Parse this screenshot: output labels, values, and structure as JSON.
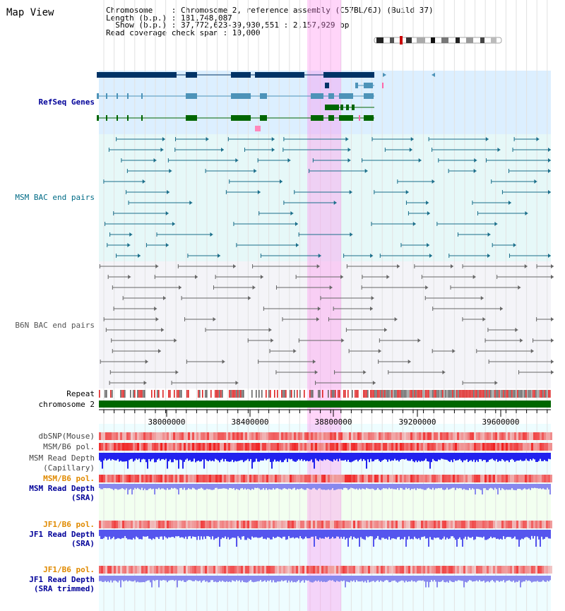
{
  "title": "Map View",
  "info": {
    "line1": "Chromosome    : Chromosome 2, reference assembly (C57BL/6J) (Build 37)",
    "line2": "Length (b.p.) : 181,748,087",
    "line3": "  Show (b.p.) : 37,772,623-39,930,551 : 2,157,929 bp",
    "line4": "Read coverage check span : 10,000"
  },
  "tracks": {
    "refseq": "RefSeq Genes",
    "msm_bac": "MSM BAC end pairs",
    "b6n_bac": "B6N BAC end pairs",
    "repeat": "Repeat",
    "chromosome": "chromosome 2",
    "dbsnp": "dbSNP(Mouse)",
    "msm_b6_pol": "MSM/B6 pol.",
    "msm_depth_cap_1": "MSM Read Depth",
    "msm_depth_cap_2": "(Capillary)",
    "msm_b6_pol2": "MSM/B6 pol.",
    "msm_depth_sra_1": "MSM Read Depth",
    "msm_depth_sra_2": "(SRA)",
    "jf1_b6_pol": "JF1/B6 pol.",
    "jf1_depth_sra_1": "JF1 Read Depth",
    "jf1_depth_sra_2": "(SRA)",
    "jf1_b6_pol2": "JF1/B6 pol.",
    "jf1_depth_trim_1": "JF1 Read Depth",
    "jf1_depth_trim_2": "(SRA trimmed)"
  },
  "axis": {
    "ticks": [
      "38000000",
      "38400000",
      "38800000",
      "39200000",
      "39600000"
    ]
  },
  "colors": {
    "highlight": "#ff99ee",
    "refseq_dark": "#003366",
    "refseq_mid": "#4d93b8",
    "refseq_green": "#006600",
    "msm_line": "#1a6e8a",
    "b6n_line": "#666666",
    "chromosome": "#006600",
    "repeat_red": "#dd2222",
    "depth_blue": "#2222ee"
  }
}
